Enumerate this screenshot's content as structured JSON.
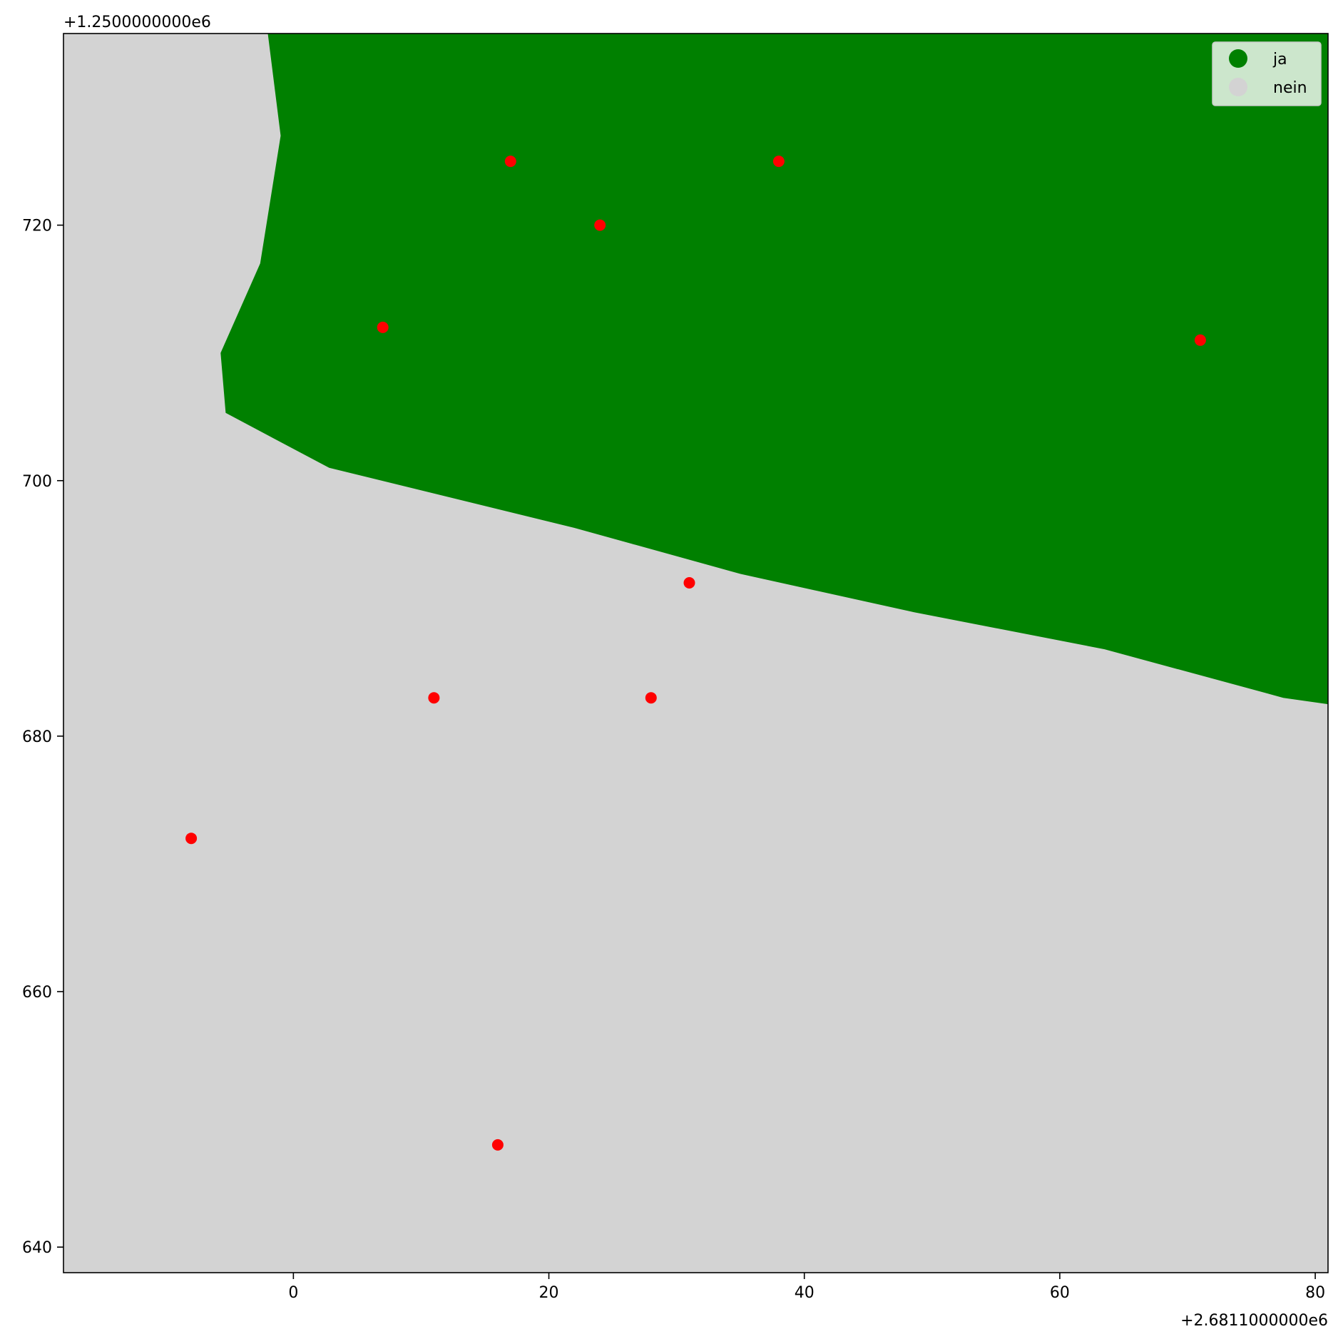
{
  "chart_data": {
    "type": "scatter",
    "x_offset_label": "+2.6811000000e6",
    "y_offset_label": "+1.2500000000e6",
    "xlim": [
      -18,
      81
    ],
    "ylim": [
      638,
      735
    ],
    "x_ticks": [
      0,
      20,
      40,
      60,
      80
    ],
    "y_ticks": [
      640,
      660,
      680,
      700,
      720
    ],
    "x_tick_labels": [
      "0",
      "20",
      "40",
      "60",
      "80"
    ],
    "y_tick_labels": [
      "640",
      "660",
      "680",
      "700",
      "720"
    ],
    "grid": false,
    "colors": {
      "background": "#d3d3d3",
      "area": "#008000",
      "points": "#ff0000"
    },
    "legend": {
      "placement": "top-right",
      "entries": [
        {
          "label": "ja",
          "color": "#008000"
        },
        {
          "label": "nein",
          "color": "#d3d3d3"
        }
      ]
    },
    "area_polygon": [
      [
        -2,
        735
      ],
      [
        -1,
        727
      ],
      [
        -2.6,
        717
      ],
      [
        -5.7,
        710
      ],
      [
        -5.3,
        705.3
      ],
      [
        2.8,
        701
      ],
      [
        22,
        696.3
      ],
      [
        35,
        692.7
      ],
      [
        48.6,
        689.7
      ],
      [
        63.5,
        686.8
      ],
      [
        77.5,
        683
      ],
      [
        81,
        682.5
      ],
      [
        81,
        735
      ]
    ],
    "points": [
      {
        "x": 17,
        "y": 725
      },
      {
        "x": 38,
        "y": 725
      },
      {
        "x": 24,
        "y": 720
      },
      {
        "x": 7,
        "y": 712
      },
      {
        "x": 71,
        "y": 711
      },
      {
        "x": 31,
        "y": 692
      },
      {
        "x": 11,
        "y": 683
      },
      {
        "x": 28,
        "y": 683
      },
      {
        "x": -8,
        "y": 672
      },
      {
        "x": 16,
        "y": 648
      }
    ]
  }
}
